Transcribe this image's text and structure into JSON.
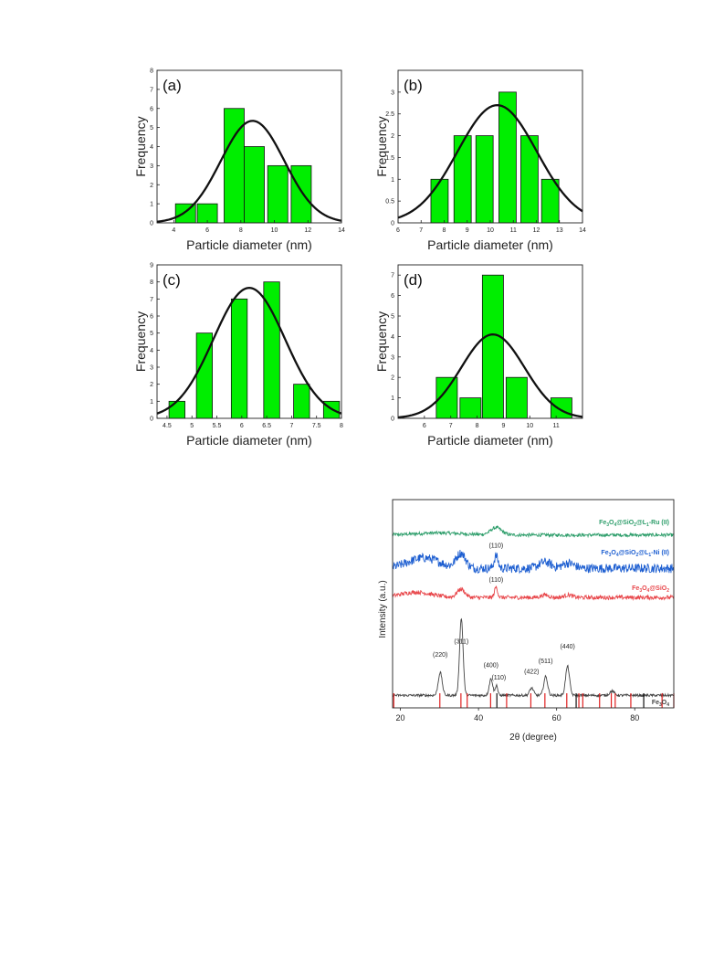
{
  "chart_data": [
    {
      "type": "bar",
      "panel_label": "(a)",
      "xlabel": "Particle diameter (nm)",
      "ylabel": "Frequency",
      "xlim": [
        3,
        14
      ],
      "ylim": [
        0,
        8
      ],
      "xticks": [
        4,
        6,
        8,
        10,
        12,
        14
      ],
      "yticks": [
        0,
        1,
        2,
        3,
        4,
        5,
        6,
        7,
        8
      ],
      "bar_width": 1.2,
      "bars": [
        {
          "x": 4.7,
          "value": 1
        },
        {
          "x": 6.0,
          "value": 1
        },
        {
          "x": 7.6,
          "value": 6
        },
        {
          "x": 8.8,
          "value": 4
        },
        {
          "x": 10.2,
          "value": 3
        },
        {
          "x": 11.6,
          "value": 3
        }
      ],
      "fit": {
        "type": "normal",
        "mean": 8.7,
        "sd": 1.9,
        "peak": 5.35
      },
      "bar_color": "#00ee00",
      "curve_color": "#111111"
    },
    {
      "type": "bar",
      "panel_label": "(b)",
      "xlabel": "Particle diameter (nm)",
      "ylabel": "Frequency",
      "xlim": [
        6,
        14
      ],
      "ylim": [
        0,
        3.5
      ],
      "xticks": [
        6,
        7,
        8,
        9,
        10,
        11,
        12,
        13,
        14
      ],
      "yticks": [
        0,
        0.5,
        1,
        1.5,
        2,
        2.5,
        3
      ],
      "bar_width": 0.75,
      "bars": [
        {
          "x": 7.8,
          "value": 1
        },
        {
          "x": 8.8,
          "value": 2
        },
        {
          "x": 9.75,
          "value": 2
        },
        {
          "x": 10.75,
          "value": 3
        },
        {
          "x": 11.7,
          "value": 2
        },
        {
          "x": 12.6,
          "value": 1
        }
      ],
      "fit": {
        "type": "normal",
        "mean": 10.3,
        "sd": 1.72,
        "peak": 2.7
      },
      "bar_color": "#00ee00",
      "curve_color": "#111111"
    },
    {
      "type": "bar",
      "panel_label": "(c)",
      "xlabel": "Particle diameter (nm)",
      "ylabel": "Frequency",
      "xlim": [
        4.3,
        8
      ],
      "ylim": [
        0,
        9
      ],
      "xticks": [
        4.5,
        5,
        5.5,
        6,
        6.5,
        7,
        7.5,
        8
      ],
      "yticks": [
        0,
        1,
        2,
        3,
        4,
        5,
        6,
        7,
        8,
        9
      ],
      "bar_width": 0.32,
      "bars": [
        {
          "x": 4.7,
          "value": 1
        },
        {
          "x": 5.25,
          "value": 5
        },
        {
          "x": 5.95,
          "value": 7
        },
        {
          "x": 6.6,
          "value": 8
        },
        {
          "x": 7.2,
          "value": 2
        },
        {
          "x": 7.8,
          "value": 1
        }
      ],
      "fit": {
        "type": "normal",
        "mean": 6.15,
        "sd": 0.72,
        "peak": 7.65
      },
      "bar_color": "#00ee00",
      "curve_color": "#111111"
    },
    {
      "type": "bar",
      "panel_label": "(d)",
      "xlabel": "Particle diameter (nm)",
      "ylabel": "Frequency",
      "xlim": [
        5,
        12
      ],
      "ylim": [
        0,
        7.5
      ],
      "xticks": [
        6,
        7,
        8,
        9,
        10,
        11
      ],
      "yticks": [
        0,
        1,
        2,
        3,
        4,
        5,
        6,
        7
      ],
      "bar_width": 0.8,
      "bars": [
        {
          "x": 6.85,
          "value": 2
        },
        {
          "x": 7.75,
          "value": 1
        },
        {
          "x": 8.6,
          "value": 7
        },
        {
          "x": 9.5,
          "value": 2
        },
        {
          "x": 11.2,
          "value": 1
        }
      ],
      "fit": {
        "type": "normal",
        "mean": 8.6,
        "sd": 1.2,
        "peak": 4.1
      },
      "bar_color": "#00ee00",
      "curve_color": "#111111"
    },
    {
      "type": "line",
      "xlabel": "2θ (degree)",
      "ylabel": "Intensity (a.u.)",
      "xlim": [
        18,
        90
      ],
      "xticks": [
        20,
        40,
        60,
        80
      ],
      "series": [
        {
          "name": "Fe3O4@SiO2@L1-Ru (II)",
          "label_parts": [
            [
              "Fe",
              ""
            ],
            [
              "3",
              "sub"
            ],
            [
              "O",
              ""
            ],
            [
              "4",
              "sub"
            ],
            [
              "@SiO",
              ""
            ],
            [
              "2",
              "sub"
            ],
            [
              "@L",
              ""
            ],
            [
              "1",
              "sub"
            ],
            [
              "-Ru (II)",
              ""
            ]
          ],
          "color": "#2e9e6b",
          "baseline": 0.83,
          "peaks": [
            {
              "x": 44.5,
              "height": 0.035,
              "width": 1.4
            },
            {
              "x": 30,
              "height": 0.01,
              "width": 6
            }
          ],
          "noise": 0.008
        },
        {
          "name": "Fe3O4@SiO2@L1-Ni (II)",
          "label_parts": [
            [
              "Fe",
              ""
            ],
            [
              "3",
              "sub"
            ],
            [
              "O",
              ""
            ],
            [
              "4",
              "sub"
            ],
            [
              "@SiO",
              ""
            ],
            [
              "2",
              "sub"
            ],
            [
              "@L",
              ""
            ],
            [
              "1",
              "sub"
            ],
            [
              "-Ni (II)",
              ""
            ]
          ],
          "color": "#1e5fd1",
          "baseline": 0.67,
          "peaks": [
            {
              "x": 26,
              "height": 0.05,
              "width": 4
            },
            {
              "x": 35.5,
              "height": 0.07,
              "width": 1.2
            },
            {
              "x": 44.5,
              "height": 0.06,
              "width": 0.5
            },
            {
              "x": 57,
              "height": 0.03,
              "width": 1.5
            },
            {
              "x": 63,
              "height": 0.025,
              "width": 1.5
            }
          ],
          "noise": 0.022
        },
        {
          "name": "Fe3O4@SiO2",
          "label_parts": [
            [
              "Fe",
              ""
            ],
            [
              "3",
              "sub"
            ],
            [
              "O",
              ""
            ],
            [
              "4",
              "sub"
            ],
            [
              "@SiO",
              ""
            ],
            [
              "2",
              "sub"
            ]
          ],
          "color": "#e8474b",
          "baseline": 0.53,
          "peaks": [
            {
              "x": 24,
              "height": 0.025,
              "width": 4
            },
            {
              "x": 35.5,
              "height": 0.04,
              "width": 1
            },
            {
              "x": 44.5,
              "height": 0.05,
              "width": 0.4
            },
            {
              "x": 57,
              "height": 0.012,
              "width": 1
            },
            {
              "x": 63,
              "height": 0.012,
              "width": 1
            }
          ],
          "noise": 0.01
        },
        {
          "name": "Fe3O4",
          "label_parts": [
            [
              "Fe",
              ""
            ],
            [
              "3",
              "sub"
            ],
            [
              "O",
              ""
            ],
            [
              "4",
              "sub"
            ]
          ],
          "color": "#444444",
          "baseline": 0.06,
          "peaks": [
            {
              "x": 30.2,
              "height": 0.11,
              "width": 0.5
            },
            {
              "x": 35.6,
              "height": 0.37,
              "width": 0.45
            },
            {
              "x": 43.2,
              "height": 0.08,
              "width": 0.45
            },
            {
              "x": 44.6,
              "height": 0.05,
              "width": 0.3
            },
            {
              "x": 53.6,
              "height": 0.035,
              "width": 0.5
            },
            {
              "x": 57.2,
              "height": 0.09,
              "width": 0.5
            },
            {
              "x": 62.8,
              "height": 0.14,
              "width": 0.5
            },
            {
              "x": 74.2,
              "height": 0.02,
              "width": 0.6
            }
          ],
          "noise": 0.006
        }
      ],
      "peak_labels": [
        {
          "text": "(220)",
          "x": 30.2,
          "y": 0.245
        },
        {
          "text": "(311)",
          "x": 35.6,
          "y": 0.31
        },
        {
          "text": "(400)",
          "x": 43.2,
          "y": 0.195
        },
        {
          "text": "(110)",
          "x": 45.2,
          "y": 0.135
        },
        {
          "text": "(422)",
          "x": 53.6,
          "y": 0.165
        },
        {
          "text": "(511)",
          "x": 57.2,
          "y": 0.215
        },
        {
          "text": "(440)",
          "x": 62.8,
          "y": 0.285
        },
        {
          "text": "(110)",
          "x": 44.5,
          "y": 0.77
        },
        {
          "text": "(110)",
          "x": 44.5,
          "y": 0.605
        }
      ],
      "reference_lines_red": [
        18.3,
        30.1,
        35.5,
        37.1,
        43.1,
        47.2,
        53.4,
        57.0,
        62.6,
        65.7,
        66.7,
        71.0,
        74.0,
        75.0,
        79.0,
        87.0,
        90.0
      ],
      "reference_lines_black": [
        44.7,
        65.0,
        82.3
      ]
    }
  ]
}
